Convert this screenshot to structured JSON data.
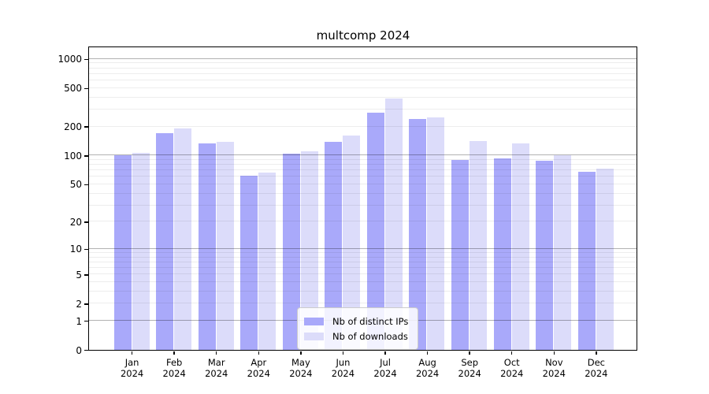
{
  "chart_data": {
    "type": "bar",
    "title": "multcomp 2024",
    "categories": [
      "Jan",
      "Feb",
      "Mar",
      "Apr",
      "May",
      "Jun",
      "Jul",
      "Aug",
      "Sep",
      "Oct",
      "Nov",
      "Dec"
    ],
    "x_year": "2024",
    "series": [
      {
        "name": "Nb of distinct IPs",
        "color": "#a9a9fa",
        "values": [
          100,
          170,
          134,
          62,
          104,
          139,
          280,
          240,
          90,
          94,
          89,
          68
        ]
      },
      {
        "name": "Nb of downloads",
        "color": "#dcdcfa",
        "values": [
          107,
          192,
          140,
          66,
          111,
          161,
          392,
          250,
          141,
          134,
          100,
          73
        ]
      }
    ],
    "y_axis": {
      "scale": "log10(1+value)",
      "tick_values": [
        0,
        1,
        2,
        5,
        10,
        20,
        50,
        100,
        200,
        500,
        1000
      ],
      "major_gridlines": [
        1,
        10,
        100,
        1000
      ],
      "minor_gridlines": [
        2,
        3,
        4,
        5,
        6,
        7,
        8,
        9,
        20,
        30,
        40,
        50,
        60,
        70,
        80,
        90,
        200,
        300,
        400,
        500,
        600,
        700,
        800,
        900
      ],
      "axis_max": 1320
    },
    "xlabel": "",
    "ylabel": "",
    "grid": true,
    "legend_position": "inside-bottom-center"
  },
  "colors": {
    "bar_distinct_ips": "#a9a9fa",
    "bar_downloads": "#dcdcfa",
    "major_grid": "#b3b3b3",
    "minor_grid": "#ededed",
    "spine": "#000000",
    "legend_border": "#cccccc",
    "legend_background": "#fdfdfe",
    "text": "#000000"
  }
}
